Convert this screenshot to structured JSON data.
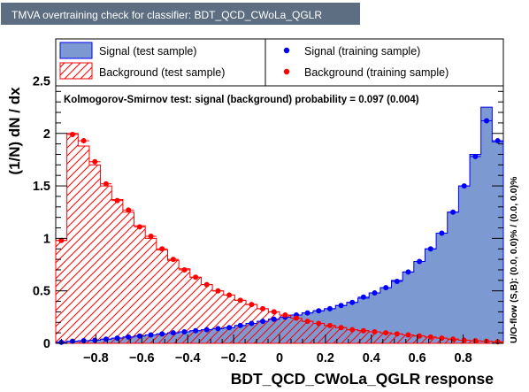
{
  "window": {
    "title": "TMVA overtraining check for classifier: BDT_QCD_CWoLa_QGLR"
  },
  "colors": {
    "title_bg": "#5d6d82",
    "title_text": "#ffffff",
    "signal_fill": "#7d99d1",
    "signal_line": "#0000ee",
    "background_hatch": "#ff0000",
    "signal_marker": "#0000ff",
    "background_marker": "#ff0000"
  },
  "legend": {
    "sig_test": "Signal (test sample)",
    "sig_train": "Signal (training sample)",
    "bkg_test": "Background (test sample)",
    "bkg_train": "Background (training sample)"
  },
  "ks_text": "Kolmogorov-Smirnov test: signal (background) probability = 0.097 (0.004)",
  "side_text": "U/O-flow (S,B): (0.0, 0.0)% / (0.0, 0.0)%",
  "chart_data": {
    "type": "area",
    "xlabel": "BDT_QCD_CWoLa_QGLR response",
    "ylabel": "(1/N) dN / dx",
    "xlim": [
      -0.975,
      0.975
    ],
    "ylim": [
      0,
      2.9
    ],
    "xticks": [
      -0.8,
      -0.6,
      -0.4,
      -0.2,
      0,
      0.2,
      0.4,
      0.6,
      0.8
    ],
    "xtick_labels": [
      "−0.8",
      "−0.6",
      "−0.4",
      "−0.2",
      "0",
      "0.2",
      "0.4",
      "0.6",
      "0.8"
    ],
    "yticks": [
      0,
      0.5,
      1,
      1.5,
      2,
      2.5
    ],
    "ytick_labels": [
      "0",
      "0.5",
      "1",
      "1.5",
      "2",
      "2.5"
    ],
    "bin_edges_range": [
      -0.975,
      0.975
    ],
    "n_bins": 40,
    "series": [
      {
        "name": "Signal (test sample)",
        "style": "filled-histogram",
        "values": [
          0.01,
          0.02,
          0.025,
          0.03,
          0.04,
          0.05,
          0.06,
          0.07,
          0.08,
          0.09,
          0.1,
          0.11,
          0.12,
          0.13,
          0.14,
          0.15,
          0.17,
          0.19,
          0.21,
          0.23,
          0.25,
          0.27,
          0.29,
          0.31,
          0.33,
          0.36,
          0.39,
          0.43,
          0.48,
          0.53,
          0.6,
          0.68,
          0.78,
          0.9,
          1.05,
          1.25,
          1.5,
          1.8,
          2.25,
          1.92
        ]
      },
      {
        "name": "Background (test sample)",
        "style": "hatched-histogram",
        "values": [
          0.98,
          2.0,
          1.88,
          1.7,
          1.5,
          1.37,
          1.25,
          1.12,
          1.0,
          0.89,
          0.79,
          0.71,
          0.63,
          0.56,
          0.5,
          0.46,
          0.41,
          0.37,
          0.33,
          0.3,
          0.27,
          0.24,
          0.21,
          0.19,
          0.17,
          0.15,
          0.13,
          0.12,
          0.11,
          0.1,
          0.09,
          0.08,
          0.07,
          0.06,
          0.05,
          0.04,
          0.03,
          0.025,
          0.02,
          0.015
        ]
      },
      {
        "name": "Signal (training sample)",
        "style": "markers",
        "values": [
          0.01,
          0.02,
          0.025,
          0.03,
          0.04,
          0.05,
          0.06,
          0.07,
          0.08,
          0.09,
          0.1,
          0.11,
          0.12,
          0.13,
          0.14,
          0.15,
          0.17,
          0.19,
          0.21,
          0.23,
          0.25,
          0.27,
          0.29,
          0.31,
          0.33,
          0.36,
          0.39,
          0.44,
          0.48,
          0.53,
          0.59,
          0.68,
          0.78,
          0.9,
          1.05,
          1.25,
          1.5,
          1.78,
          2.12,
          1.93
        ]
      },
      {
        "name": "Background (training sample)",
        "style": "markers",
        "values": [
          0.98,
          1.99,
          1.93,
          1.73,
          1.52,
          1.36,
          1.27,
          1.11,
          1.02,
          0.9,
          0.8,
          0.7,
          0.63,
          0.56,
          0.5,
          0.46,
          0.41,
          0.37,
          0.33,
          0.3,
          0.27,
          0.24,
          0.21,
          0.19,
          0.17,
          0.15,
          0.13,
          0.12,
          0.11,
          0.1,
          0.09,
          0.08,
          0.07,
          0.06,
          0.05,
          0.04,
          0.03,
          0.025,
          0.02,
          0.015
        ]
      }
    ]
  }
}
